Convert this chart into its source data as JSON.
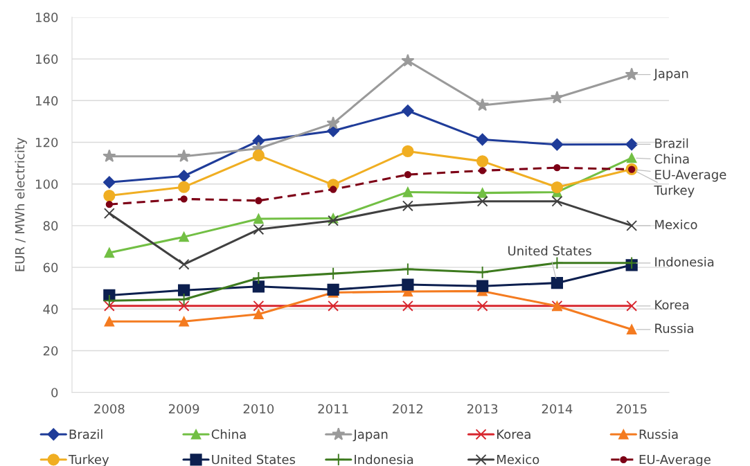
{
  "chart_data": {
    "type": "line",
    "ylabel": "EUR / MWh electricity",
    "categories": [
      "2008",
      "2009",
      "2010",
      "2011",
      "2012",
      "2013",
      "2014",
      "2015"
    ],
    "ylim": [
      0,
      180
    ],
    "yticks": [
      0,
      20,
      40,
      60,
      80,
      100,
      120,
      140,
      160,
      180
    ],
    "grid": "y",
    "legend": "bottom",
    "series": [
      {
        "name": "Brazil",
        "color": "#1f3c99",
        "marker": "diamond",
        "line_style": "solid",
        "values": [
          100.8,
          103.8,
          120.7,
          125.5,
          135.1,
          121.3,
          118.9,
          119.0
        ]
      },
      {
        "name": "China",
        "color": "#72bf44",
        "marker": "triangle",
        "line_style": "solid",
        "values": [
          67.0,
          74.6,
          83.3,
          83.5,
          96.1,
          95.7,
          96.1,
          112.5
        ]
      },
      {
        "name": "Japan",
        "color": "#9a9a9a",
        "marker": "star",
        "line_style": "solid",
        "values": [
          113.3,
          113.3,
          117.0,
          129.1,
          159.1,
          137.8,
          141.4,
          152.5
        ]
      },
      {
        "name": "Korea",
        "color": "#d7262e",
        "marker": "cross",
        "line_style": "solid",
        "values": [
          41.5,
          41.5,
          41.5,
          41.5,
          41.5,
          41.5,
          41.5,
          41.5
        ]
      },
      {
        "name": "Russia",
        "color": "#f47b20",
        "marker": "triangle",
        "line_style": "solid",
        "values": [
          34.0,
          34.0,
          37.5,
          47.9,
          48.4,
          48.6,
          41.4,
          30.2
        ]
      },
      {
        "name": "Turkey",
        "color": "#f0ae22",
        "marker": "circle",
        "line_style": "solid",
        "values": [
          94.4,
          98.5,
          113.7,
          99.6,
          115.7,
          110.9,
          98.4,
          107.1
        ]
      },
      {
        "name": "United States",
        "color": "#0c1f4f",
        "marker": "square",
        "line_style": "solid",
        "values": [
          46.6,
          49.0,
          50.8,
          49.3,
          51.7,
          51.0,
          52.5,
          61.1
        ]
      },
      {
        "name": "Indonesia",
        "color": "#3d7a1e",
        "marker": "plus",
        "line_style": "solid",
        "values": [
          44.0,
          44.6,
          54.9,
          57.0,
          59.1,
          57.6,
          62.1,
          62.1
        ]
      },
      {
        "name": "Mexico",
        "color": "#404040",
        "marker": "cross",
        "line_style": "solid",
        "values": [
          85.9,
          61.4,
          78.2,
          82.4,
          89.5,
          91.7,
          91.7,
          80.0
        ]
      },
      {
        "name": "EU-Average",
        "color": "#7d0016",
        "marker": "circle",
        "line_style": "dashed",
        "values": [
          90.2,
          92.8,
          92.0,
          97.4,
          104.5,
          106.4,
          107.8,
          107.0
        ]
      }
    ],
    "annotations": [
      {
        "text": "Japan",
        "x": "2015",
        "y": 152.5
      },
      {
        "text": "Brazil",
        "x": "2015",
        "y": 119.0
      },
      {
        "text": "China",
        "x": "2015",
        "y": 112.5
      },
      {
        "text": "EU-Average",
        "x": "2015",
        "y": 107.0
      },
      {
        "text": "Turkey",
        "x": "2015",
        "y": 107.1
      },
      {
        "text": "Mexico",
        "x": "2015",
        "y": 80.0
      },
      {
        "text": "United States",
        "x": "2014",
        "y": 52.5
      },
      {
        "text": "Indonesia",
        "x": "2015",
        "y": 62.1
      },
      {
        "text": "Korea",
        "x": "2015",
        "y": 41.5
      },
      {
        "text": "Russia",
        "x": "2015",
        "y": 30.2
      }
    ]
  }
}
